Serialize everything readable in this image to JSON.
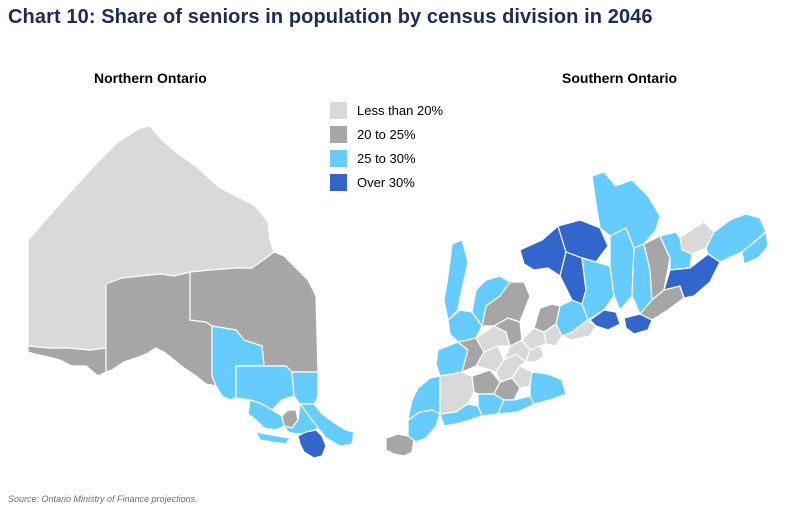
{
  "title": "Chart 10: Share of seniors in population by census division in 2046",
  "maps": {
    "north_label": "Northern Ontario",
    "south_label": "Southern Ontario"
  },
  "legend": [
    {
      "label": "Less than  20%",
      "color": "#d9d9d9"
    },
    {
      "label": "20 to 25%",
      "color": "#a6a6a6"
    },
    {
      "label": "25 to 30%",
      "color": "#66ccff"
    },
    {
      "label": "Over 30%",
      "color": "#3366cc"
    }
  ],
  "source": "Source: Ontario Ministry of Finance projections."
}
